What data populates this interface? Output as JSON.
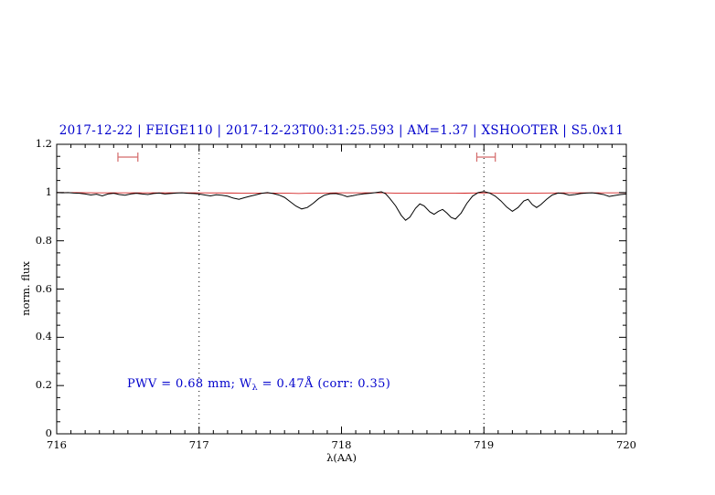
{
  "figure": {
    "title": "2017-12-22 | FEIGE110 | 2017-12-23T00:31:25.593 | AM=1.37 | XSHOOTER | S5.0x11",
    "title_color": "#0000cc",
    "annotation": {
      "pre": "PWV  =  0.68 mm; W",
      "sub": "λ",
      "post": "  =  0.47Å (corr: 0.35)",
      "color": "#0000cc"
    }
  },
  "chart_data": {
    "type": "line",
    "title": "2017-12-22 | FEIGE110 | 2017-12-23T00:31:25.593 | AM=1.37 | XSHOOTER | S5.0x11",
    "xlabel": "λ(AA)",
    "ylabel": "norm. flux",
    "xlim": [
      716,
      720
    ],
    "ylim": [
      0,
      1.2
    ],
    "grid": false,
    "x_ticks": [
      716,
      717,
      718,
      719,
      720
    ],
    "x_tick_labels": [
      "716",
      "717",
      "718",
      "719",
      "720"
    ],
    "y_ticks": [
      0,
      0.2,
      0.4,
      0.6,
      0.8,
      1,
      1.2
    ],
    "y_tick_labels": [
      "0",
      "0.2",
      "0.4",
      "0.6",
      "0.8",
      "1",
      "1.2"
    ],
    "vlines": [
      {
        "x": 717,
        "style": "dotted",
        "color": "#000000"
      },
      {
        "x": 719,
        "style": "dotted",
        "color": "#000000"
      }
    ],
    "range_markers": [
      {
        "x1": 716.43,
        "x2": 716.57,
        "y": 1.147,
        "color": "#d46a6a"
      },
      {
        "x1": 718.95,
        "x2": 719.08,
        "y": 1.147,
        "color": "#d46a6a"
      }
    ],
    "series": [
      {
        "name": "telluric-model",
        "color": "#cc0000",
        "width": 0.8,
        "points": [
          [
            716.0,
            1.0
          ],
          [
            716.3,
            0.999
          ],
          [
            716.5,
            0.999
          ],
          [
            717.0,
            0.999
          ],
          [
            717.3,
            0.998
          ],
          [
            717.55,
            0.998
          ],
          [
            717.7,
            0.996
          ],
          [
            717.85,
            0.998
          ],
          [
            718.0,
            0.999
          ],
          [
            718.3,
            0.999
          ],
          [
            718.45,
            0.997
          ],
          [
            718.6,
            0.997
          ],
          [
            718.8,
            0.997
          ],
          [
            719.0,
            0.999
          ],
          [
            719.2,
            0.997
          ],
          [
            719.37,
            0.998
          ],
          [
            719.6,
            0.999
          ],
          [
            720.0,
            0.999
          ]
        ]
      },
      {
        "name": "observed-spectrum",
        "color": "#000000",
        "width": 1,
        "points": [
          [
            716.0,
            1.0
          ],
          [
            716.04,
            0.999
          ],
          [
            716.08,
            1.0
          ],
          [
            716.12,
            0.998
          ],
          [
            716.16,
            0.997
          ],
          [
            716.2,
            0.994
          ],
          [
            716.24,
            0.99
          ],
          [
            716.28,
            0.993
          ],
          [
            716.32,
            0.986
          ],
          [
            716.36,
            0.994
          ],
          [
            716.4,
            0.997
          ],
          [
            716.44,
            0.992
          ],
          [
            716.48,
            0.989
          ],
          [
            716.52,
            0.994
          ],
          [
            716.56,
            0.997
          ],
          [
            716.6,
            0.994
          ],
          [
            716.64,
            0.992
          ],
          [
            716.68,
            0.996
          ],
          [
            716.72,
            0.998
          ],
          [
            716.76,
            0.994
          ],
          [
            716.8,
            0.996
          ],
          [
            716.84,
            0.998
          ],
          [
            716.88,
            0.999
          ],
          [
            716.92,
            0.997
          ],
          [
            716.96,
            0.996
          ],
          [
            717.0,
            0.994
          ],
          [
            717.04,
            0.99
          ],
          [
            717.08,
            0.986
          ],
          [
            717.12,
            0.991
          ],
          [
            717.16,
            0.989
          ],
          [
            717.2,
            0.985
          ],
          [
            717.24,
            0.977
          ],
          [
            717.28,
            0.972
          ],
          [
            717.32,
            0.979
          ],
          [
            717.36,
            0.985
          ],
          [
            717.4,
            0.991
          ],
          [
            717.44,
            0.997
          ],
          [
            717.48,
            1.0
          ],
          [
            717.52,
            0.996
          ],
          [
            717.56,
            0.99
          ],
          [
            717.6,
            0.98
          ],
          [
            717.64,
            0.962
          ],
          [
            717.68,
            0.944
          ],
          [
            717.72,
            0.932
          ],
          [
            717.76,
            0.938
          ],
          [
            717.8,
            0.955
          ],
          [
            717.84,
            0.975
          ],
          [
            717.88,
            0.989
          ],
          [
            717.92,
            0.995
          ],
          [
            717.96,
            0.996
          ],
          [
            718.0,
            0.991
          ],
          [
            718.04,
            0.983
          ],
          [
            718.08,
            0.987
          ],
          [
            718.12,
            0.992
          ],
          [
            718.16,
            0.995
          ],
          [
            718.2,
            0.997
          ],
          [
            718.24,
            1.0
          ],
          [
            718.28,
            1.003
          ],
          [
            718.31,
            0.995
          ],
          [
            718.34,
            0.975
          ],
          [
            718.38,
            0.945
          ],
          [
            718.42,
            0.905
          ],
          [
            718.45,
            0.885
          ],
          [
            718.48,
            0.898
          ],
          [
            718.52,
            0.935
          ],
          [
            718.55,
            0.953
          ],
          [
            718.58,
            0.945
          ],
          [
            718.62,
            0.92
          ],
          [
            718.65,
            0.91
          ],
          [
            718.68,
            0.922
          ],
          [
            718.71,
            0.93
          ],
          [
            718.74,
            0.915
          ],
          [
            718.77,
            0.897
          ],
          [
            718.8,
            0.89
          ],
          [
            718.84,
            0.915
          ],
          [
            718.88,
            0.955
          ],
          [
            718.92,
            0.985
          ],
          [
            718.96,
            1.0
          ],
          [
            719.0,
            1.004
          ],
          [
            719.04,
            0.998
          ],
          [
            719.08,
            0.985
          ],
          [
            719.12,
            0.965
          ],
          [
            719.16,
            0.94
          ],
          [
            719.2,
            0.922
          ],
          [
            719.24,
            0.938
          ],
          [
            719.28,
            0.965
          ],
          [
            719.31,
            0.972
          ],
          [
            719.34,
            0.95
          ],
          [
            719.37,
            0.938
          ],
          [
            719.4,
            0.95
          ],
          [
            719.44,
            0.972
          ],
          [
            719.48,
            0.99
          ],
          [
            719.52,
            0.998
          ],
          [
            719.56,
            0.996
          ],
          [
            719.6,
            0.989
          ],
          [
            719.64,
            0.992
          ],
          [
            719.68,
            0.996
          ],
          [
            719.72,
            0.998
          ],
          [
            719.76,
            0.999
          ],
          [
            719.8,
            0.996
          ],
          [
            719.84,
            0.992
          ],
          [
            719.88,
            0.984
          ],
          [
            719.92,
            0.988
          ],
          [
            719.96,
            0.992
          ],
          [
            720.0,
            0.994
          ]
        ]
      }
    ],
    "annotation": "PWV = 0.68 mm; Wλ = 0.47Å (corr: 0.35)",
    "legend_position": "none"
  }
}
